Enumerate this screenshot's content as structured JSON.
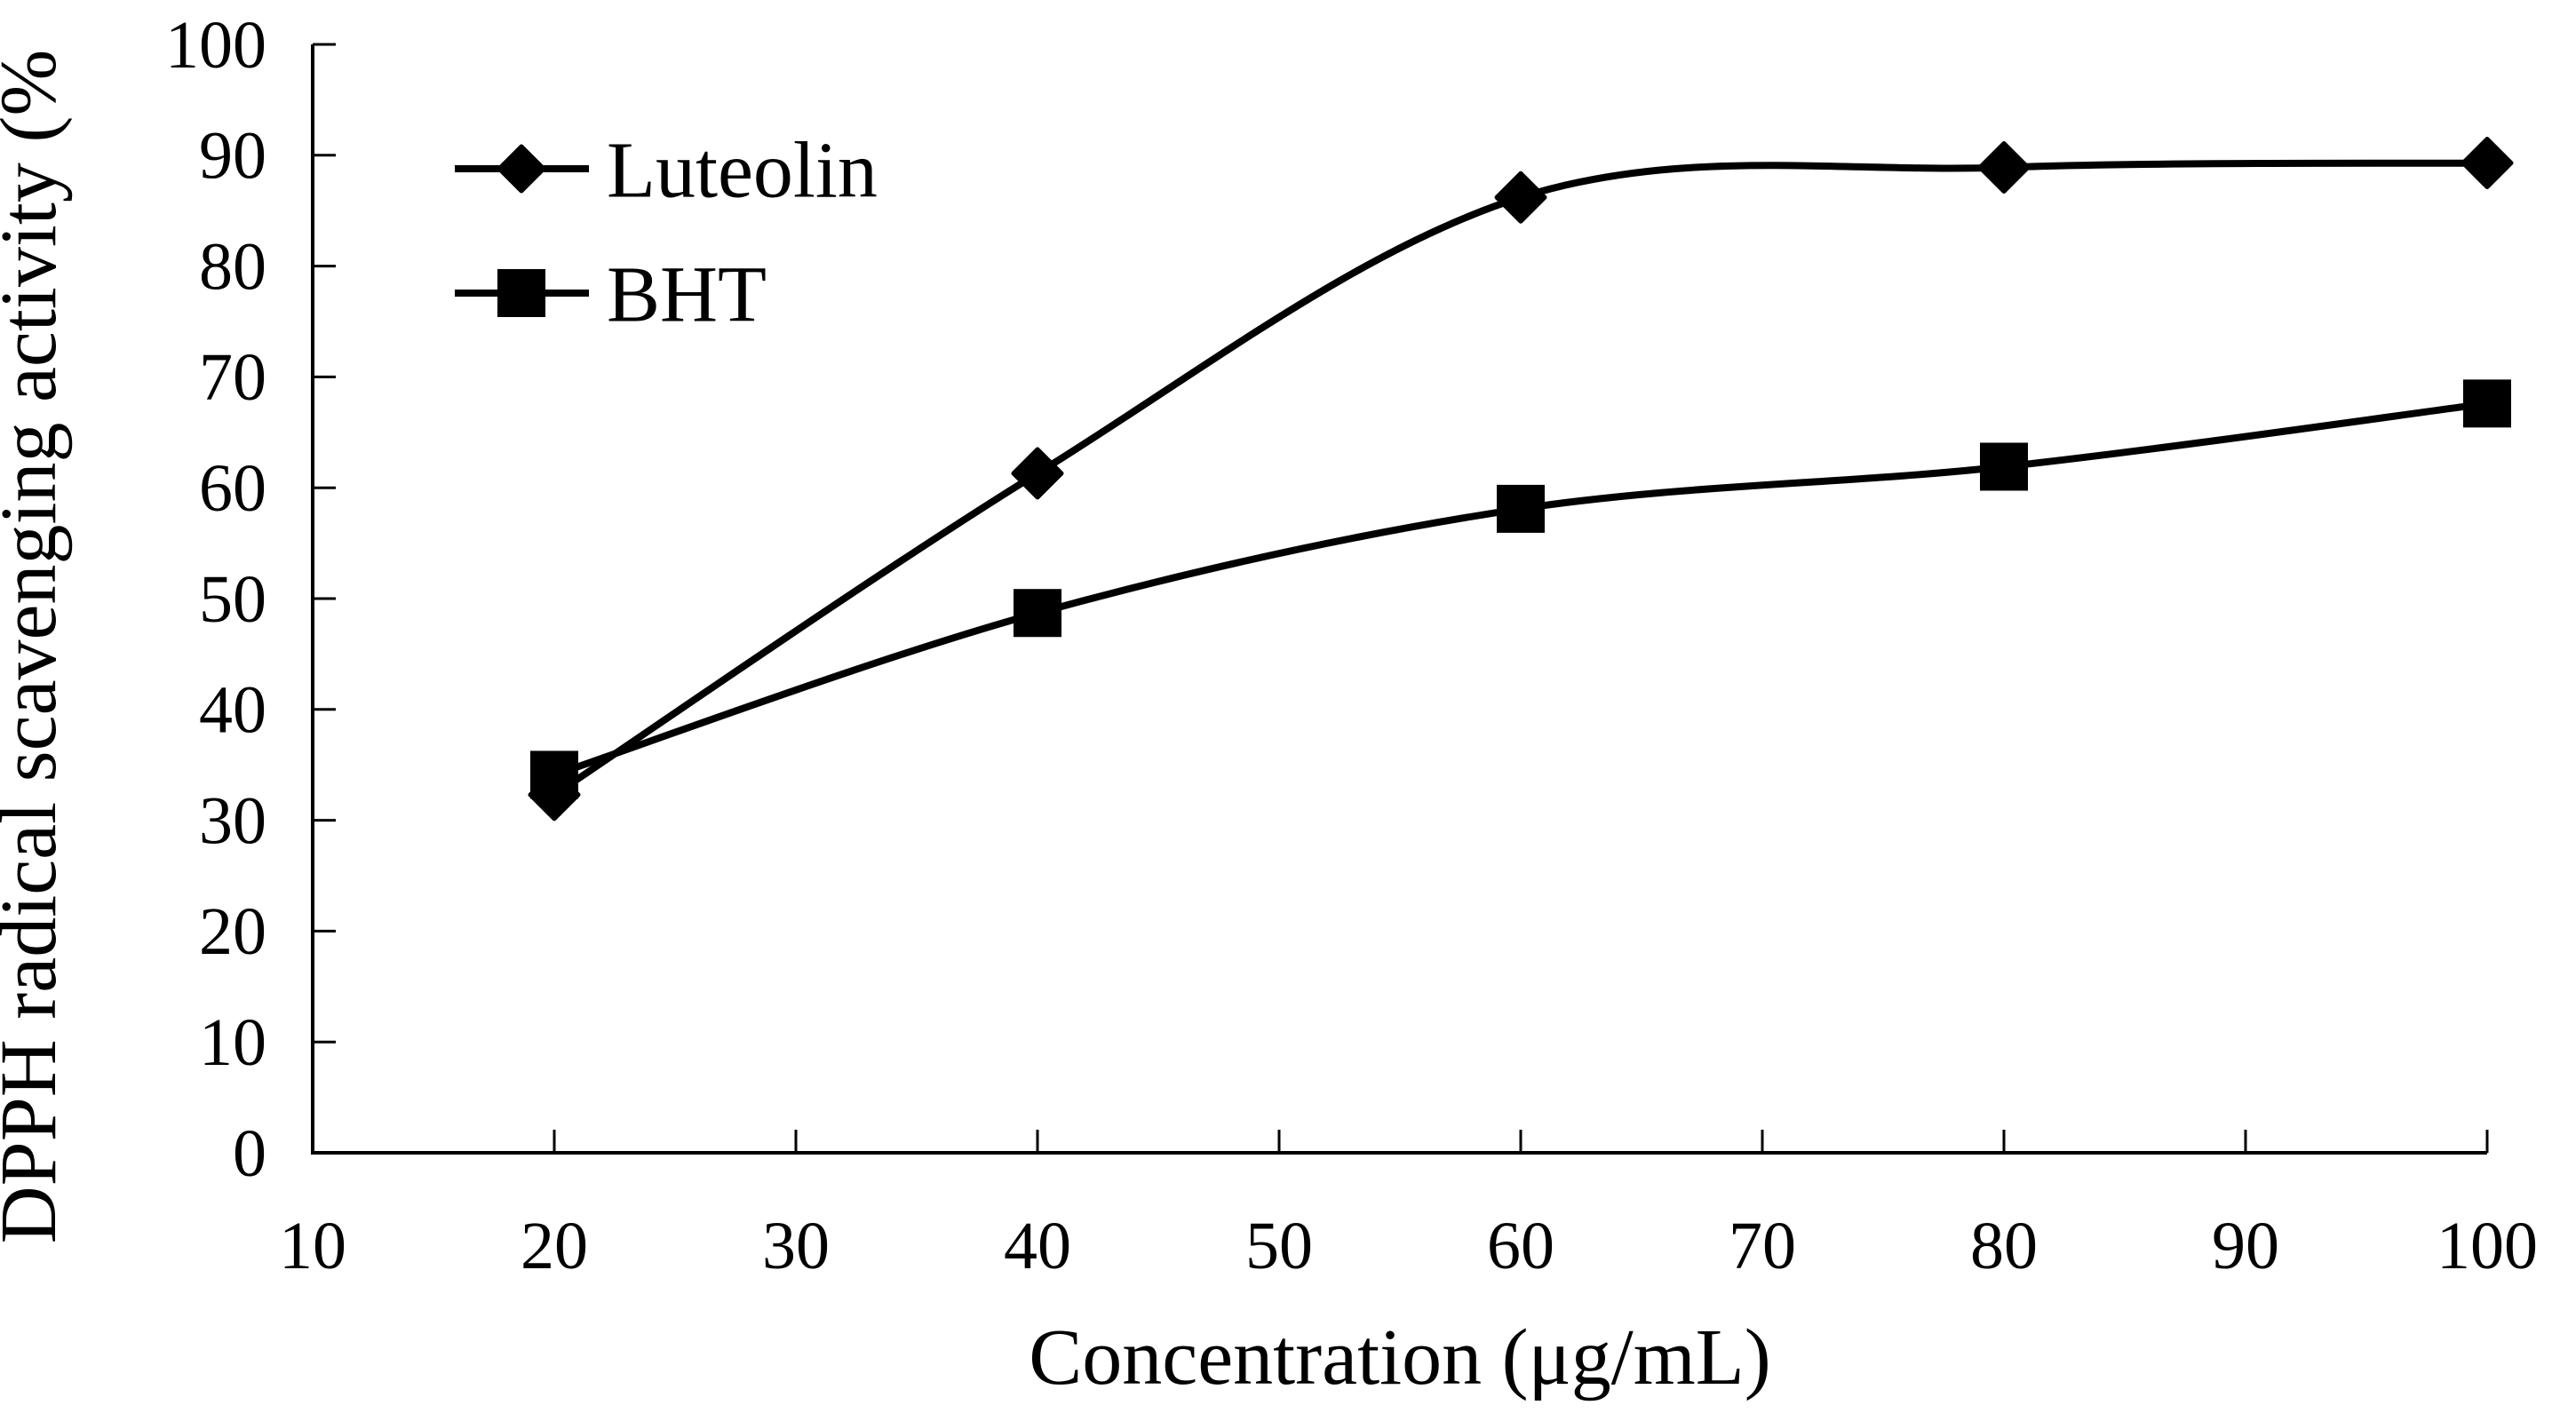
{
  "figure": {
    "background": "#ffffff",
    "ink_color": "#000000"
  },
  "chart_data": {
    "type": "line",
    "title": "",
    "xlabel": "Concentration (μg/mL)",
    "ylabel": "DPPH radical scavenging activity (%",
    "x": [
      20,
      40,
      60,
      80,
      100
    ],
    "series": [
      {
        "name": "Luteolin",
        "marker": "diamond",
        "values": [
          32.3,
          61.3,
          86.2,
          88.9,
          89.3
        ]
      },
      {
        "name": "BHT",
        "marker": "square",
        "values": [
          34.1,
          48.7,
          58.1,
          61.9,
          67.6
        ]
      }
    ],
    "xlim": [
      10,
      100
    ],
    "ylim": [
      0,
      100
    ],
    "x_ticks": [
      10,
      20,
      30,
      40,
      50,
      60,
      70,
      80,
      90,
      100
    ],
    "y_ticks": [
      0,
      10,
      20,
      30,
      40,
      50,
      60,
      70,
      80,
      90,
      100
    ],
    "grid": false,
    "line_smoothing": true,
    "legend_position": "top-left-inside",
    "legend": [
      {
        "label": "Luteolin",
        "marker": "diamond"
      },
      {
        "label": "BHT",
        "marker": "square"
      }
    ]
  }
}
